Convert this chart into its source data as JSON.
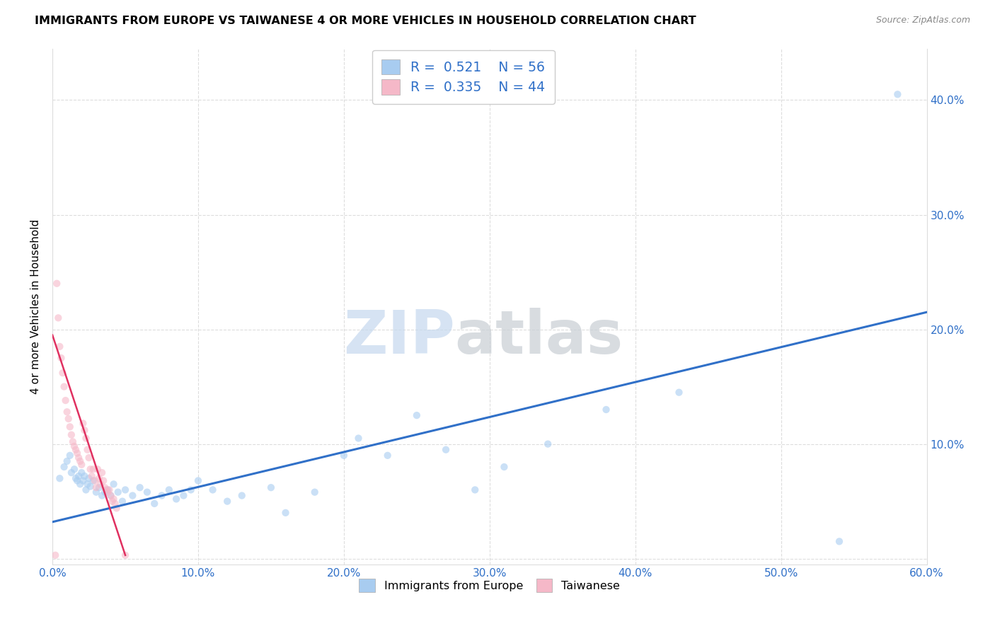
{
  "title": "IMMIGRANTS FROM EUROPE VS TAIWANESE 4 OR MORE VEHICLES IN HOUSEHOLD CORRELATION CHART",
  "source": "Source: ZipAtlas.com",
  "ylabel": "4 or more Vehicles in Household",
  "xlim": [
    0.0,
    0.6
  ],
  "ylim": [
    -0.005,
    0.445
  ],
  "xticks": [
    0.0,
    0.1,
    0.2,
    0.3,
    0.4,
    0.5,
    0.6
  ],
  "yticks": [
    0.0,
    0.1,
    0.2,
    0.3,
    0.4
  ],
  "xticklabels": [
    "0.0%",
    "10.0%",
    "20.0%",
    "30.0%",
    "40.0%",
    "50.0%",
    "60.0%"
  ],
  "yticklabels_right": [
    "10.0%",
    "20.0%",
    "30.0%",
    "40.0%"
  ],
  "blue_color": "#A8CCF0",
  "pink_color": "#F5B8C8",
  "blue_line_color": "#3070C8",
  "pink_line_color": "#E03060",
  "legend_R_blue": "0.521",
  "legend_N_blue": "56",
  "legend_R_pink": "0.335",
  "legend_N_pink": "44",
  "legend_label_blue": "Immigrants from Europe",
  "legend_label_pink": "Taiwanese",
  "blue_scatter_x": [
    0.005,
    0.008,
    0.01,
    0.012,
    0.013,
    0.015,
    0.016,
    0.017,
    0.018,
    0.019,
    0.02,
    0.021,
    0.022,
    0.023,
    0.024,
    0.025,
    0.026,
    0.028,
    0.03,
    0.032,
    0.034,
    0.036,
    0.038,
    0.04,
    0.042,
    0.045,
    0.048,
    0.05,
    0.055,
    0.06,
    0.065,
    0.07,
    0.075,
    0.08,
    0.085,
    0.09,
    0.095,
    0.1,
    0.11,
    0.12,
    0.13,
    0.15,
    0.16,
    0.18,
    0.2,
    0.21,
    0.23,
    0.25,
    0.27,
    0.29,
    0.31,
    0.34,
    0.38,
    0.43,
    0.54,
    0.58
  ],
  "blue_scatter_y": [
    0.07,
    0.08,
    0.085,
    0.09,
    0.075,
    0.078,
    0.07,
    0.068,
    0.072,
    0.065,
    0.075,
    0.068,
    0.072,
    0.06,
    0.065,
    0.07,
    0.063,
    0.068,
    0.058,
    0.062,
    0.055,
    0.058,
    0.06,
    0.055,
    0.065,
    0.058,
    0.05,
    0.06,
    0.055,
    0.062,
    0.058,
    0.048,
    0.055,
    0.06,
    0.052,
    0.055,
    0.06,
    0.068,
    0.06,
    0.05,
    0.055,
    0.062,
    0.04,
    0.058,
    0.09,
    0.105,
    0.09,
    0.125,
    0.095,
    0.06,
    0.08,
    0.1,
    0.13,
    0.145,
    0.015,
    0.405
  ],
  "pink_scatter_x": [
    0.002,
    0.003,
    0.004,
    0.005,
    0.006,
    0.007,
    0.008,
    0.009,
    0.01,
    0.011,
    0.012,
    0.013,
    0.014,
    0.015,
    0.016,
    0.017,
    0.018,
    0.019,
    0.02,
    0.021,
    0.022,
    0.023,
    0.024,
    0.025,
    0.026,
    0.027,
    0.028,
    0.029,
    0.03,
    0.031,
    0.032,
    0.033,
    0.034,
    0.035,
    0.036,
    0.037,
    0.038,
    0.039,
    0.04,
    0.041,
    0.042,
    0.043,
    0.044,
    0.05
  ],
  "pink_scatter_y": [
    0.003,
    0.24,
    0.21,
    0.185,
    0.175,
    0.162,
    0.15,
    0.138,
    0.128,
    0.122,
    0.115,
    0.108,
    0.102,
    0.098,
    0.095,
    0.092,
    0.088,
    0.085,
    0.082,
    0.118,
    0.112,
    0.105,
    0.095,
    0.088,
    0.078,
    0.072,
    0.078,
    0.068,
    0.062,
    0.078,
    0.07,
    0.065,
    0.075,
    0.068,
    0.062,
    0.06,
    0.058,
    0.06,
    0.055,
    0.05,
    0.052,
    0.048,
    0.044,
    0.003
  ],
  "blue_trend_x": [
    0.0,
    0.6
  ],
  "blue_trend_y": [
    0.032,
    0.215
  ],
  "pink_trend_x": [
    0.0,
    0.05
  ],
  "pink_trend_y": [
    0.195,
    0.003
  ],
  "watermark_zip": "ZIP",
  "watermark_atlas": "atlas",
  "background_color": "#FFFFFF",
  "grid_color": "#DDDDDD",
  "title_fontsize": 11.5,
  "tick_fontsize": 11,
  "axis_label_fontsize": 11,
  "scatter_size": 55,
  "scatter_alpha": 0.6
}
